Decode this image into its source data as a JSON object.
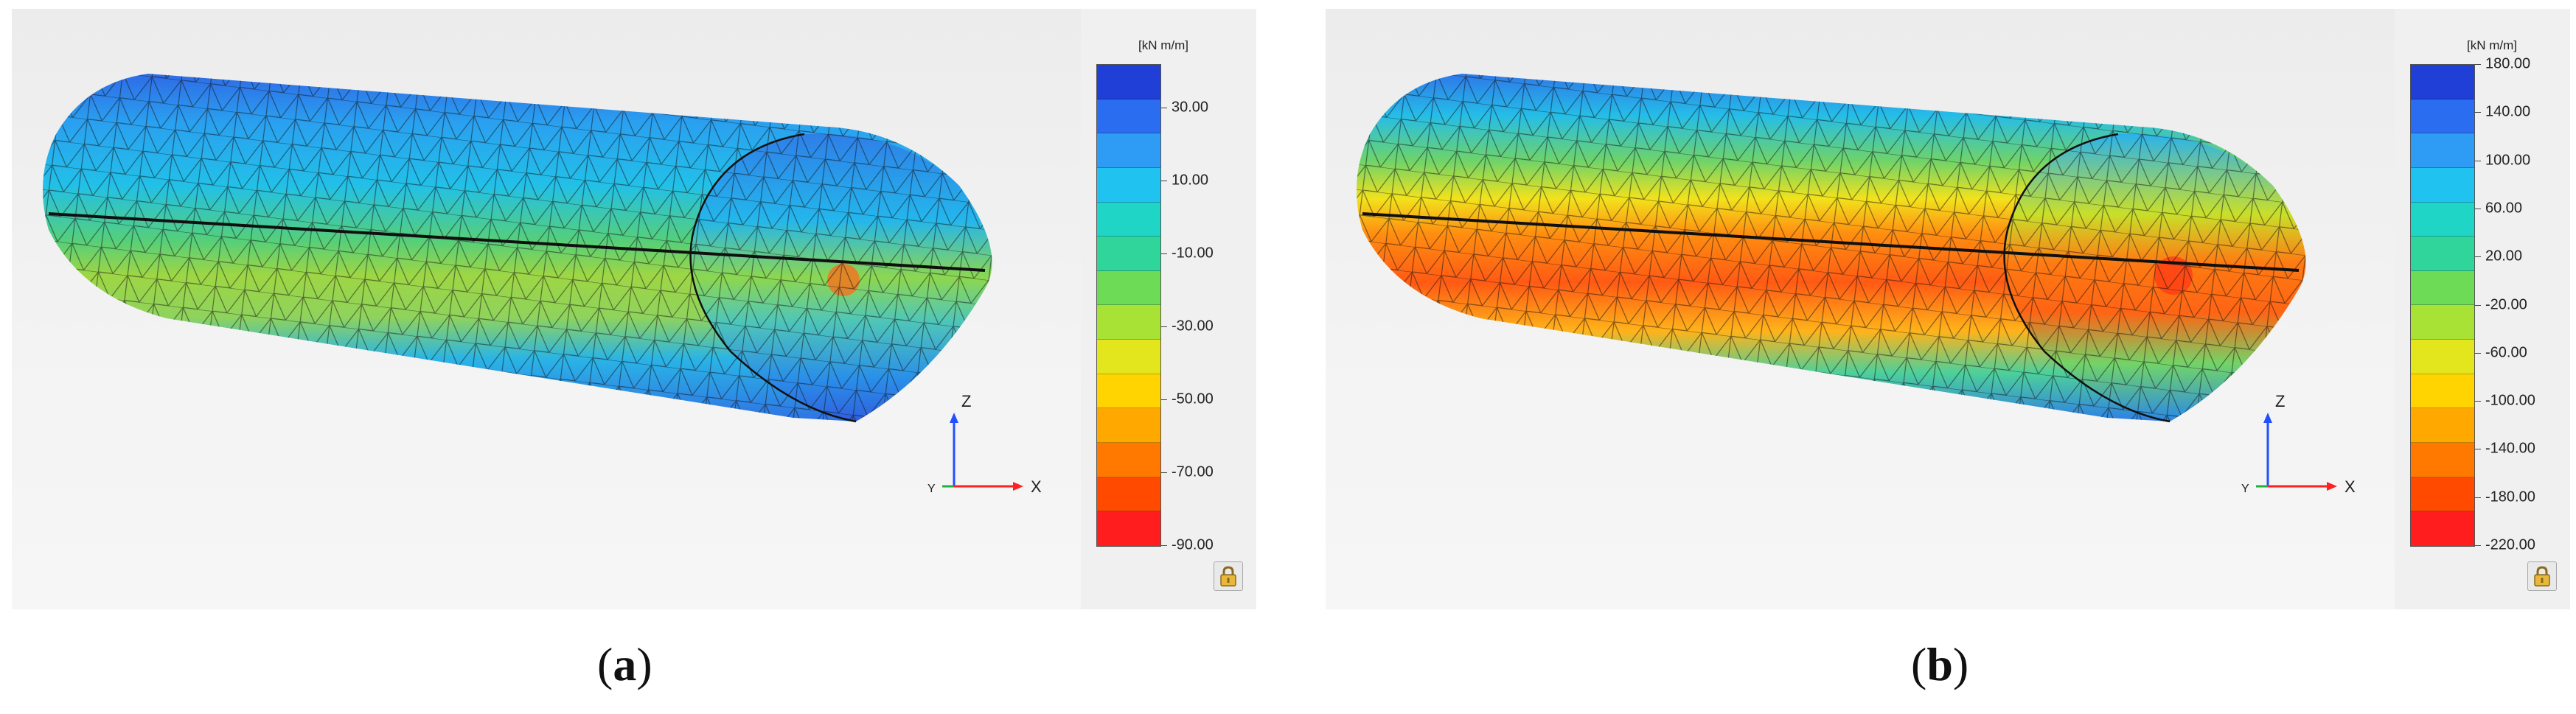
{
  "panels": [
    {
      "id": "a",
      "caption_open": "(",
      "caption_letter": "a",
      "caption_close": ")",
      "unit": "[kN m/m]",
      "legend_labels": [
        "30.00",
        "10.00",
        "-10.00",
        "-30.00",
        "-50.00",
        "-70.00",
        "-90.00"
      ],
      "legend_colors": [
        "#1f3fd6",
        "#2a6df0",
        "#2e9bf5",
        "#20c3ef",
        "#1fd6c6",
        "#2fd59a",
        "#6ddb55",
        "#a8e235",
        "#e3e61d",
        "#ffd400",
        "#ffa800",
        "#ff7800",
        "#ff4a00",
        "#ff1d1d"
      ],
      "axis_z": "Z",
      "axis_x": "X",
      "axis_y": "Y"
    },
    {
      "id": "b",
      "caption_open": "(",
      "caption_letter": "b",
      "caption_close": ")",
      "unit": "[kN m/m]",
      "legend_labels": [
        "180.00",
        "140.00",
        "100.00",
        "60.00",
        "20.00",
        "-20.00",
        "-60.00",
        "-100.00",
        "-140.00",
        "-180.00",
        "-220.00"
      ],
      "legend_colors": [
        "#1f3fd6",
        "#2a6df0",
        "#2e9bf5",
        "#20c3ef",
        "#1fd6c6",
        "#2fd59a",
        "#6ddb55",
        "#a8e235",
        "#e3e61d",
        "#ffd400",
        "#ffa800",
        "#ff7800",
        "#ff4a00",
        "#ff1d1d"
      ],
      "axis_z": "Z",
      "axis_x": "X",
      "axis_y": "Y"
    }
  ]
}
